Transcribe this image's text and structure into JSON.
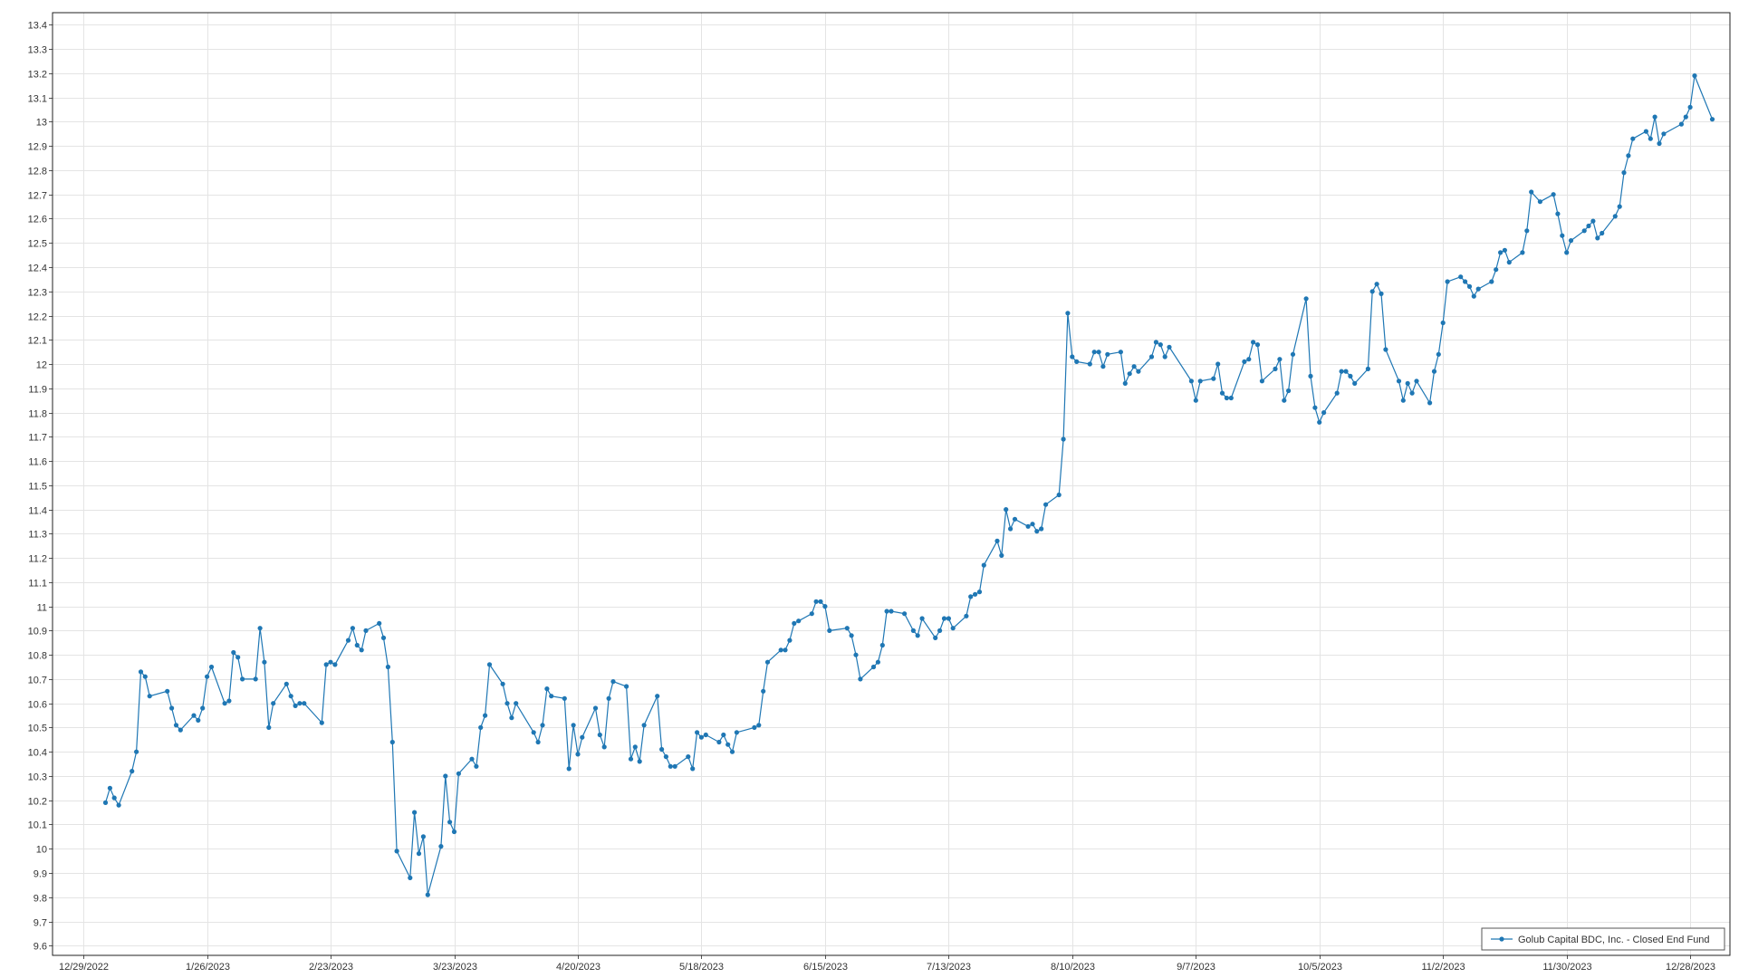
{
  "chart_data": {
    "type": "line",
    "title": "",
    "xlabel": "",
    "ylabel": "",
    "x_ticks": [
      "12/29/2022",
      "1/26/2023",
      "2/23/2023",
      "3/23/2023",
      "4/20/2023",
      "5/18/2023",
      "6/15/2023",
      "7/13/2023",
      "8/10/2023",
      "9/7/2023",
      "10/5/2023",
      "11/2/2023",
      "11/30/2023",
      "12/28/2023"
    ],
    "xlim": [
      "2022-12-22",
      "2024-01-06"
    ],
    "y_ticks": [
      "9.6",
      "9.7",
      "9.8",
      "9.9",
      "10",
      "10.1",
      "10.2",
      "10.3",
      "10.4",
      "10.5",
      "10.6",
      "10.7",
      "10.8",
      "10.9",
      "11",
      "11.1",
      "11.2",
      "11.3",
      "11.4",
      "11.5",
      "11.6",
      "11.7",
      "11.8",
      "11.9",
      "12",
      "12.1",
      "12.2",
      "12.3",
      "12.4",
      "12.5",
      "12.6",
      "12.7",
      "12.8",
      "12.9",
      "13",
      "13.1",
      "13.2",
      "13.3",
      "13.4"
    ],
    "ylim": [
      9.56,
      13.45
    ],
    "grid": true,
    "legend_position": "bottom-right",
    "series": [
      {
        "name": "Golub Capital BDC, Inc. - Closed End Fund",
        "color": "#1f77b4",
        "points": [
          [
            "2023-01-03",
            10.19
          ],
          [
            "2023-01-04",
            10.25
          ],
          [
            "2023-01-05",
            10.21
          ],
          [
            "2023-01-06",
            10.18
          ],
          [
            "2023-01-09",
            10.32
          ],
          [
            "2023-01-10",
            10.4
          ],
          [
            "2023-01-11",
            10.73
          ],
          [
            "2023-01-12",
            10.71
          ],
          [
            "2023-01-13",
            10.63
          ],
          [
            "2023-01-17",
            10.65
          ],
          [
            "2023-01-18",
            10.58
          ],
          [
            "2023-01-19",
            10.51
          ],
          [
            "2023-01-20",
            10.49
          ],
          [
            "2023-01-23",
            10.55
          ],
          [
            "2023-01-24",
            10.53
          ],
          [
            "2023-01-25",
            10.58
          ],
          [
            "2023-01-26",
            10.71
          ],
          [
            "2023-01-27",
            10.75
          ],
          [
            "2023-01-30",
            10.6
          ],
          [
            "2023-01-31",
            10.61
          ],
          [
            "2023-02-01",
            10.81
          ],
          [
            "2023-02-02",
            10.79
          ],
          [
            "2023-02-03",
            10.7
          ],
          [
            "2023-02-06",
            10.7
          ],
          [
            "2023-02-07",
            10.91
          ],
          [
            "2023-02-08",
            10.77
          ],
          [
            "2023-02-09",
            10.5
          ],
          [
            "2023-02-10",
            10.6
          ],
          [
            "2023-02-13",
            10.68
          ],
          [
            "2023-02-14",
            10.63
          ],
          [
            "2023-02-15",
            10.59
          ],
          [
            "2023-02-16",
            10.6
          ],
          [
            "2023-02-17",
            10.6
          ],
          [
            "2023-02-21",
            10.52
          ],
          [
            "2023-02-22",
            10.76
          ],
          [
            "2023-02-23",
            10.77
          ],
          [
            "2023-02-24",
            10.76
          ],
          [
            "2023-02-27",
            10.86
          ],
          [
            "2023-02-28",
            10.91
          ],
          [
            "2023-03-01",
            10.84
          ],
          [
            "2023-03-02",
            10.82
          ],
          [
            "2023-03-03",
            10.9
          ],
          [
            "2023-03-06",
            10.93
          ],
          [
            "2023-03-07",
            10.87
          ],
          [
            "2023-03-08",
            10.75
          ],
          [
            "2023-03-09",
            10.44
          ],
          [
            "2023-03-10",
            9.99
          ],
          [
            "2023-03-13",
            9.88
          ],
          [
            "2023-03-14",
            10.15
          ],
          [
            "2023-03-15",
            9.98
          ],
          [
            "2023-03-16",
            10.05
          ],
          [
            "2023-03-17",
            9.81
          ],
          [
            "2023-03-20",
            10.01
          ],
          [
            "2023-03-21",
            10.3
          ],
          [
            "2023-03-22",
            10.11
          ],
          [
            "2023-03-23",
            10.07
          ],
          [
            "2023-03-24",
            10.31
          ],
          [
            "2023-03-27",
            10.37
          ],
          [
            "2023-03-28",
            10.34
          ],
          [
            "2023-03-29",
            10.5
          ],
          [
            "2023-03-30",
            10.55
          ],
          [
            "2023-03-31",
            10.76
          ],
          [
            "2023-04-03",
            10.68
          ],
          [
            "2023-04-04",
            10.6
          ],
          [
            "2023-04-05",
            10.54
          ],
          [
            "2023-04-06",
            10.6
          ],
          [
            "2023-04-10",
            10.48
          ],
          [
            "2023-04-11",
            10.44
          ],
          [
            "2023-04-12",
            10.51
          ],
          [
            "2023-04-13",
            10.66
          ],
          [
            "2023-04-14",
            10.63
          ],
          [
            "2023-04-17",
            10.62
          ],
          [
            "2023-04-18",
            10.33
          ],
          [
            "2023-04-19",
            10.51
          ],
          [
            "2023-04-20",
            10.39
          ],
          [
            "2023-04-21",
            10.46
          ],
          [
            "2023-04-24",
            10.58
          ],
          [
            "2023-04-25",
            10.47
          ],
          [
            "2023-04-26",
            10.42
          ],
          [
            "2023-04-27",
            10.62
          ],
          [
            "2023-04-28",
            10.69
          ],
          [
            "2023-05-01",
            10.67
          ],
          [
            "2023-05-02",
            10.37
          ],
          [
            "2023-05-03",
            10.42
          ],
          [
            "2023-05-04",
            10.36
          ],
          [
            "2023-05-05",
            10.51
          ],
          [
            "2023-05-08",
            10.63
          ],
          [
            "2023-05-09",
            10.41
          ],
          [
            "2023-05-10",
            10.38
          ],
          [
            "2023-05-11",
            10.34
          ],
          [
            "2023-05-12",
            10.34
          ],
          [
            "2023-05-15",
            10.38
          ],
          [
            "2023-05-16",
            10.33
          ],
          [
            "2023-05-17",
            10.48
          ],
          [
            "2023-05-18",
            10.46
          ],
          [
            "2023-05-19",
            10.47
          ],
          [
            "2023-05-22",
            10.44
          ],
          [
            "2023-05-23",
            10.47
          ],
          [
            "2023-05-24",
            10.43
          ],
          [
            "2023-05-25",
            10.4
          ],
          [
            "2023-05-26",
            10.48
          ],
          [
            "2023-05-30",
            10.5
          ],
          [
            "2023-05-31",
            10.51
          ],
          [
            "2023-06-01",
            10.65
          ],
          [
            "2023-06-02",
            10.77
          ],
          [
            "2023-06-05",
            10.82
          ],
          [
            "2023-06-06",
            10.82
          ],
          [
            "2023-06-07",
            10.86
          ],
          [
            "2023-06-08",
            10.93
          ],
          [
            "2023-06-09",
            10.94
          ],
          [
            "2023-06-12",
            10.97
          ],
          [
            "2023-06-13",
            11.02
          ],
          [
            "2023-06-14",
            11.02
          ],
          [
            "2023-06-15",
            11.0
          ],
          [
            "2023-06-16",
            10.9
          ],
          [
            "2023-06-20",
            10.91
          ],
          [
            "2023-06-21",
            10.88
          ],
          [
            "2023-06-22",
            10.8
          ],
          [
            "2023-06-23",
            10.7
          ],
          [
            "2023-06-26",
            10.75
          ],
          [
            "2023-06-27",
            10.77
          ],
          [
            "2023-06-28",
            10.84
          ],
          [
            "2023-06-29",
            10.98
          ],
          [
            "2023-06-30",
            10.98
          ],
          [
            "2023-07-03",
            10.97
          ],
          [
            "2023-07-05",
            10.9
          ],
          [
            "2023-07-06",
            10.88
          ],
          [
            "2023-07-07",
            10.95
          ],
          [
            "2023-07-10",
            10.87
          ],
          [
            "2023-07-11",
            10.9
          ],
          [
            "2023-07-12",
            10.95
          ],
          [
            "2023-07-13",
            10.95
          ],
          [
            "2023-07-14",
            10.91
          ],
          [
            "2023-07-17",
            10.96
          ],
          [
            "2023-07-18",
            11.04
          ],
          [
            "2023-07-19",
            11.05
          ],
          [
            "2023-07-20",
            11.06
          ],
          [
            "2023-07-21",
            11.17
          ],
          [
            "2023-07-24",
            11.27
          ],
          [
            "2023-07-25",
            11.21
          ],
          [
            "2023-07-26",
            11.4
          ],
          [
            "2023-07-27",
            11.32
          ],
          [
            "2023-07-28",
            11.36
          ],
          [
            "2023-07-31",
            11.33
          ],
          [
            "2023-08-01",
            11.34
          ],
          [
            "2023-08-02",
            11.31
          ],
          [
            "2023-08-03",
            11.32
          ],
          [
            "2023-08-04",
            11.42
          ],
          [
            "2023-08-07",
            11.46
          ],
          [
            "2023-08-08",
            11.69
          ],
          [
            "2023-08-09",
            12.21
          ],
          [
            "2023-08-10",
            12.03
          ],
          [
            "2023-08-11",
            12.01
          ],
          [
            "2023-08-14",
            12.0
          ],
          [
            "2023-08-15",
            12.05
          ],
          [
            "2023-08-16",
            12.05
          ],
          [
            "2023-08-17",
            11.99
          ],
          [
            "2023-08-18",
            12.04
          ],
          [
            "2023-08-21",
            12.05
          ],
          [
            "2023-08-22",
            11.92
          ],
          [
            "2023-08-23",
            11.96
          ],
          [
            "2023-08-24",
            11.99
          ],
          [
            "2023-08-25",
            11.97
          ],
          [
            "2023-08-28",
            12.03
          ],
          [
            "2023-08-29",
            12.09
          ],
          [
            "2023-08-30",
            12.08
          ],
          [
            "2023-08-31",
            12.03
          ],
          [
            "2023-09-01",
            12.07
          ],
          [
            "2023-09-06",
            11.93
          ],
          [
            "2023-09-07",
            11.85
          ],
          [
            "2023-09-08",
            11.93
          ],
          [
            "2023-09-11",
            11.94
          ],
          [
            "2023-09-12",
            12.0
          ],
          [
            "2023-09-13",
            11.88
          ],
          [
            "2023-09-14",
            11.86
          ],
          [
            "2023-09-15",
            11.86
          ],
          [
            "2023-09-18",
            12.01
          ],
          [
            "2023-09-19",
            12.02
          ],
          [
            "2023-09-20",
            12.09
          ],
          [
            "2023-09-21",
            12.08
          ],
          [
            "2023-09-22",
            11.93
          ],
          [
            "2023-09-25",
            11.98
          ],
          [
            "2023-09-26",
            12.02
          ],
          [
            "2023-09-27",
            11.85
          ],
          [
            "2023-09-28",
            11.89
          ],
          [
            "2023-09-29",
            12.04
          ],
          [
            "2023-10-02",
            12.27
          ],
          [
            "2023-10-03",
            11.95
          ],
          [
            "2023-10-04",
            11.82
          ],
          [
            "2023-10-05",
            11.76
          ],
          [
            "2023-10-06",
            11.8
          ],
          [
            "2023-10-09",
            11.88
          ],
          [
            "2023-10-10",
            11.97
          ],
          [
            "2023-10-11",
            11.97
          ],
          [
            "2023-10-12",
            11.95
          ],
          [
            "2023-10-13",
            11.92
          ],
          [
            "2023-10-16",
            11.98
          ],
          [
            "2023-10-17",
            12.3
          ],
          [
            "2023-10-18",
            12.33
          ],
          [
            "2023-10-19",
            12.29
          ],
          [
            "2023-10-20",
            12.06
          ],
          [
            "2023-10-23",
            11.93
          ],
          [
            "2023-10-24",
            11.85
          ],
          [
            "2023-10-25",
            11.92
          ],
          [
            "2023-10-26",
            11.88
          ],
          [
            "2023-10-27",
            11.93
          ],
          [
            "2023-10-30",
            11.84
          ],
          [
            "2023-10-31",
            11.97
          ],
          [
            "2023-11-01",
            12.04
          ],
          [
            "2023-11-02",
            12.17
          ],
          [
            "2023-11-03",
            12.34
          ],
          [
            "2023-11-06",
            12.36
          ],
          [
            "2023-11-07",
            12.34
          ],
          [
            "2023-11-08",
            12.32
          ],
          [
            "2023-11-09",
            12.28
          ],
          [
            "2023-11-10",
            12.31
          ],
          [
            "2023-11-13",
            12.34
          ],
          [
            "2023-11-14",
            12.39
          ],
          [
            "2023-11-15",
            12.46
          ],
          [
            "2023-11-16",
            12.47
          ],
          [
            "2023-11-17",
            12.42
          ],
          [
            "2023-11-20",
            12.46
          ],
          [
            "2023-11-21",
            12.55
          ],
          [
            "2023-11-22",
            12.71
          ],
          [
            "2023-11-24",
            12.67
          ],
          [
            "2023-11-27",
            12.7
          ],
          [
            "2023-11-28",
            12.62
          ],
          [
            "2023-11-29",
            12.53
          ],
          [
            "2023-11-30",
            12.46
          ],
          [
            "2023-12-01",
            12.51
          ],
          [
            "2023-12-04",
            12.55
          ],
          [
            "2023-12-05",
            12.57
          ],
          [
            "2023-12-06",
            12.59
          ],
          [
            "2023-12-07",
            12.52
          ],
          [
            "2023-12-08",
            12.54
          ],
          [
            "2023-12-11",
            12.61
          ],
          [
            "2023-12-12",
            12.65
          ],
          [
            "2023-12-13",
            12.79
          ],
          [
            "2023-12-14",
            12.86
          ],
          [
            "2023-12-15",
            12.93
          ],
          [
            "2023-12-18",
            12.96
          ],
          [
            "2023-12-19",
            12.93
          ],
          [
            "2023-12-20",
            13.02
          ],
          [
            "2023-12-21",
            12.91
          ],
          [
            "2023-12-22",
            12.95
          ],
          [
            "2023-12-26",
            12.99
          ],
          [
            "2023-12-27",
            13.02
          ],
          [
            "2023-12-28",
            13.06
          ],
          [
            "2023-12-29",
            13.19
          ],
          [
            "2024-01-02",
            13.01
          ]
        ]
      }
    ]
  }
}
